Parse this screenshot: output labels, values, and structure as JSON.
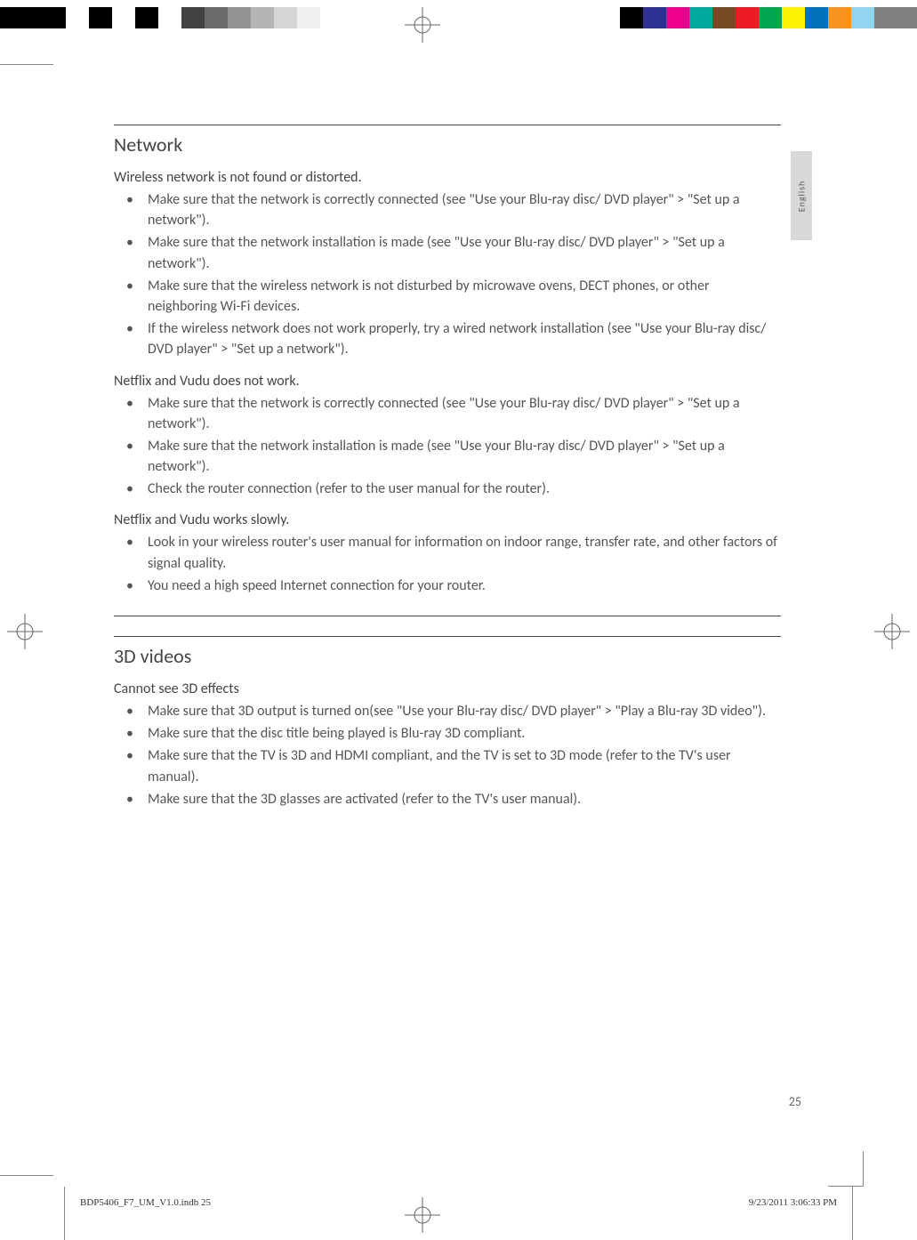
{
  "colorbar": {
    "left_widths": [
      48,
      26,
      26,
      26,
      26,
      26,
      26,
      26,
      26,
      26,
      26,
      26,
      26,
      26
    ],
    "left_colors": [
      "#000000",
      "#000000",
      "#ffffff",
      "#000000",
      "#ffffff",
      "#000000",
      "#ffffff",
      "#424242",
      "#6b6b6b",
      "#949494",
      "#b5b5b5",
      "#d6d6d6",
      "#efefef",
      "#ffffff"
    ],
    "right_widths": [
      26,
      26,
      26,
      26,
      26,
      26,
      26,
      26,
      26,
      26,
      26,
      48
    ],
    "right_colors": [
      "#000000",
      "#2e3192",
      "#ec008c",
      "#00a99d",
      "#754c24",
      "#ed1c24",
      "#00a651",
      "#fff200",
      "#0072bc",
      "#f7941d",
      "#92d5ef",
      "#808080"
    ]
  },
  "side_tab": "English",
  "sections": [
    {
      "title": "Network",
      "groups": [
        {
          "heading": "Wireless network is not found or distorted.",
          "items": [
            "Make sure that the network is correctly connected (see \"Use your Blu-ray disc/ DVD player\" > \"Set up a network\").",
            "Make sure that the network installation is made (see \"Use your Blu-ray disc/ DVD player\" > \"Set up a network\").",
            "Make sure that the wireless network is not disturbed by microwave ovens, DECT phones, or other neighboring Wi-Fi devices.",
            "If the wireless network does not work properly, try a wired network installation (see \"Use your Blu-ray disc/ DVD player\" > \"Set up a network\")."
          ]
        },
        {
          "heading": "Netflix and Vudu does not work.",
          "items": [
            "Make sure that the network is correctly connected (see \"Use your Blu-ray disc/ DVD player\" > \"Set up a network\").",
            "Make sure that the network installation is made (see \"Use your Blu-ray disc/ DVD player\" > \"Set up a network\").",
            "Check the router connection (refer to the user manual for the router)."
          ]
        },
        {
          "heading": "Netflix and Vudu works slowly.",
          "items": [
            "Look in your wireless router's user manual for information on indoor range, transfer rate, and other factors of signal quality.",
            "You need a high speed Internet connection for your router."
          ]
        }
      ]
    },
    {
      "title": "3D videos",
      "groups": [
        {
          "heading": "Cannot see 3D effects",
          "items": [
            "Make sure that 3D output is turned on(see \"Use your Blu-ray disc/ DVD player\" > \"Play a Blu-ray 3D video\").",
            "Make sure that the disc title being played is Blu-ray 3D compliant.",
            "Make sure that the TV is 3D and HDMI compliant, and the TV is set to 3D mode (refer to the TV's user manual).",
            "Make sure that the 3D glasses are activated (refer to the TV's user manual)."
          ]
        }
      ]
    }
  ],
  "page_number": "25",
  "footer_left": "BDP5406_F7_UM_V1.0.indb   25",
  "footer_right": "9/23/2011   3:06:33 PM"
}
